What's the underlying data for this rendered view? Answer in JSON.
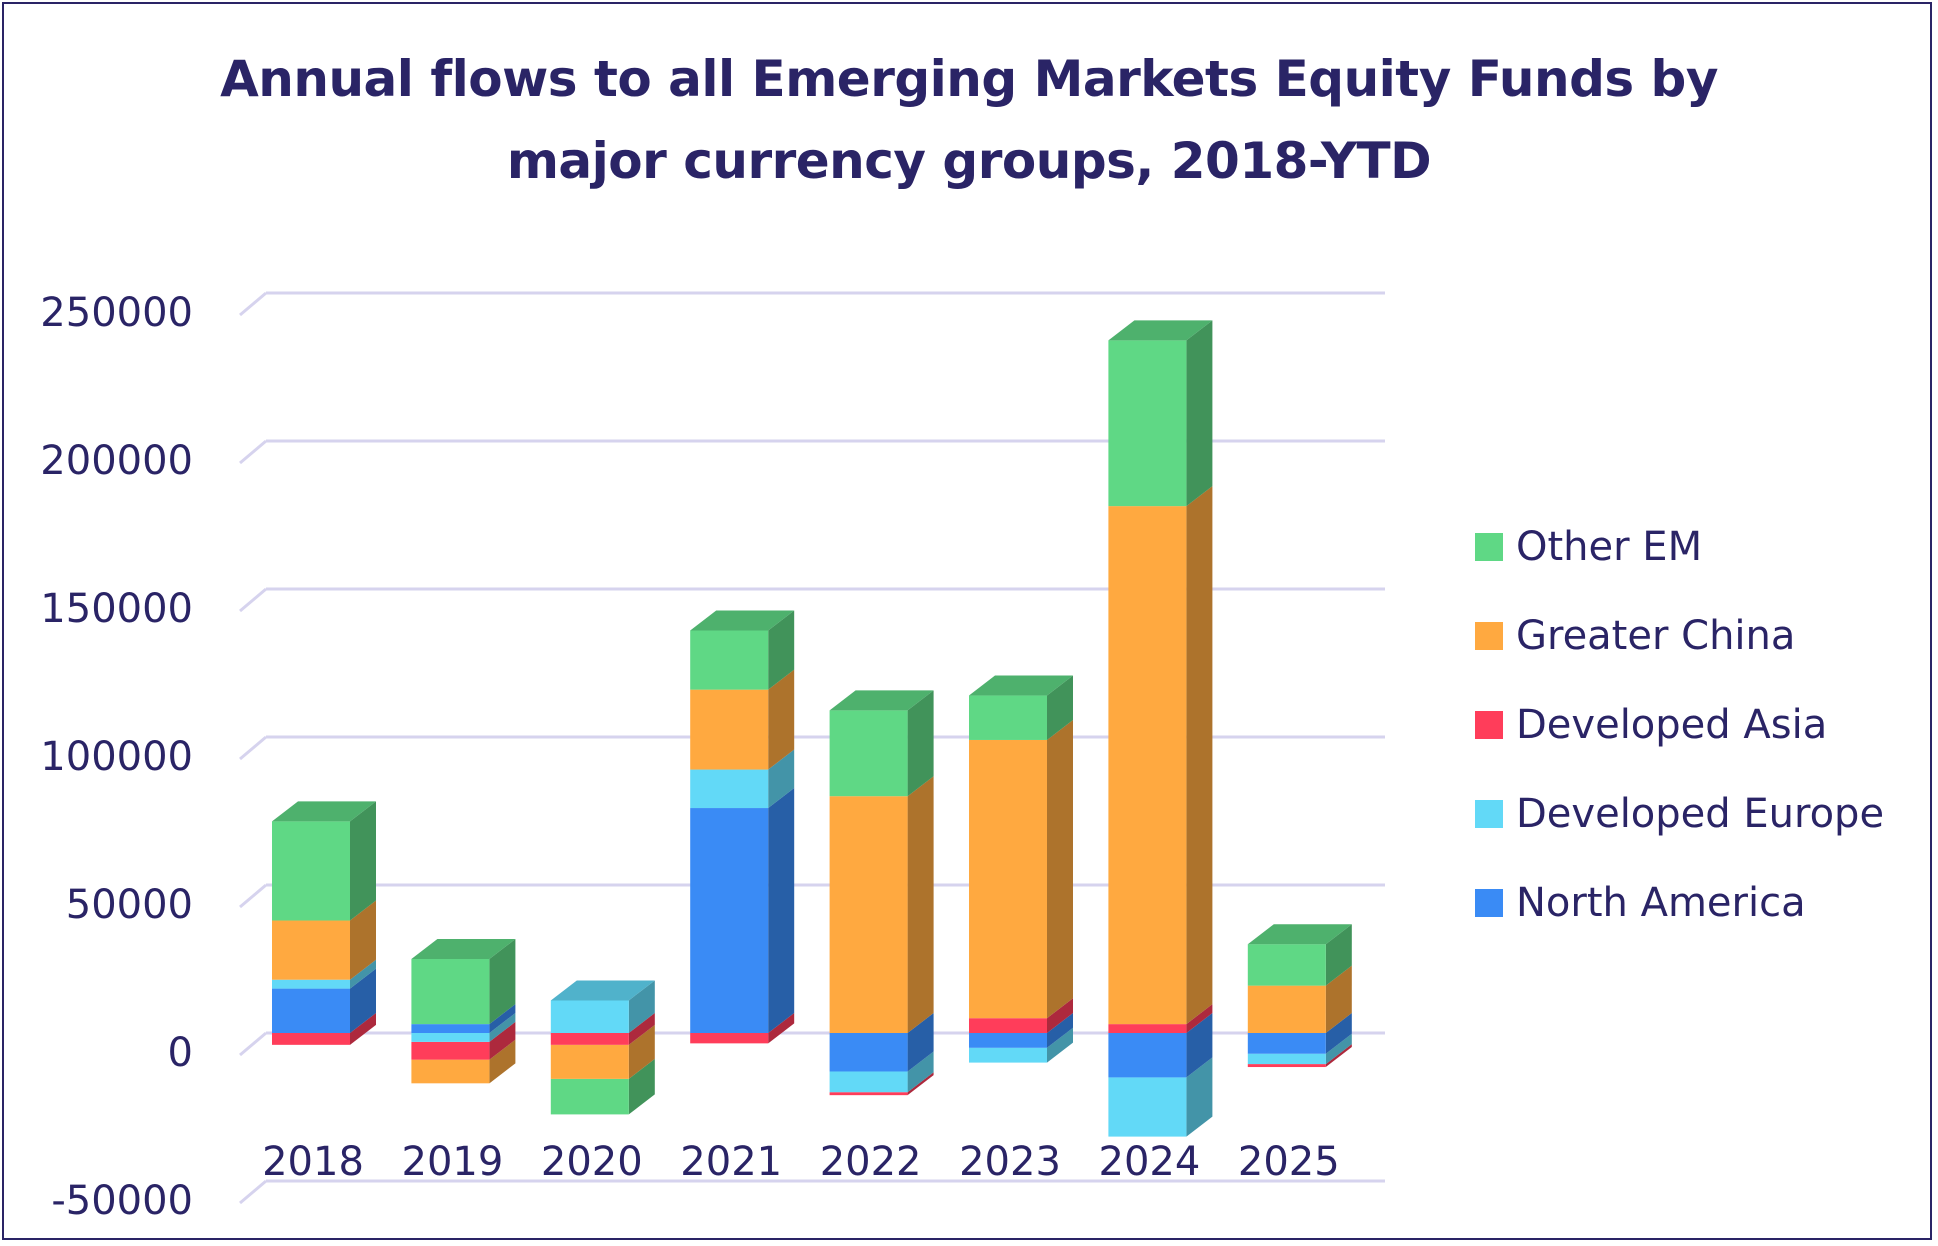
{
  "chart_data": {
    "type": "bar",
    "stacked": true,
    "style": "3d",
    "title_line1": "Annual flows to all Emerging Markets Equity Funds by",
    "title_line2": "major currency groups, 2018-YTD",
    "categories": [
      "2018",
      "2019",
      "2020",
      "2021",
      "2022",
      "2023",
      "2024",
      "2025"
    ],
    "ylim": [
      -50000,
      250000
    ],
    "yticks": [
      250000,
      200000,
      150000,
      100000,
      50000,
      0,
      -50000
    ],
    "grid": true,
    "legend_position": "right",
    "series": [
      {
        "name": "North America",
        "color": "#3a8bf5",
        "values": [
          15000,
          3000,
          0,
          76000,
          -13000,
          -5000,
          -15000,
          -7000
        ]
      },
      {
        "name": "Developed Europe",
        "color": "#62d9f7",
        "values": [
          3000,
          -3000,
          11000,
          13000,
          -7000,
          -5000,
          -20000,
          -3500
        ]
      },
      {
        "name": "Developed Asia",
        "color": "#ff3d5a",
        "values": [
          -4000,
          -6000,
          -4000,
          -3500,
          -1000,
          5000,
          3000,
          -1000
        ]
      },
      {
        "name": "Greater China",
        "color": "#ffa940",
        "values": [
          20000,
          -8000,
          -11500,
          27000,
          80000,
          94000,
          175000,
          16000
        ]
      },
      {
        "name": "Other EM",
        "color": "#5fd885",
        "values": [
          33500,
          22000,
          -12000,
          20000,
          29000,
          15000,
          56000,
          14000
        ]
      }
    ],
    "legend_order": [
      "Other EM",
      "Greater China",
      "Developed Asia",
      "Developed Europe",
      "North America"
    ]
  }
}
